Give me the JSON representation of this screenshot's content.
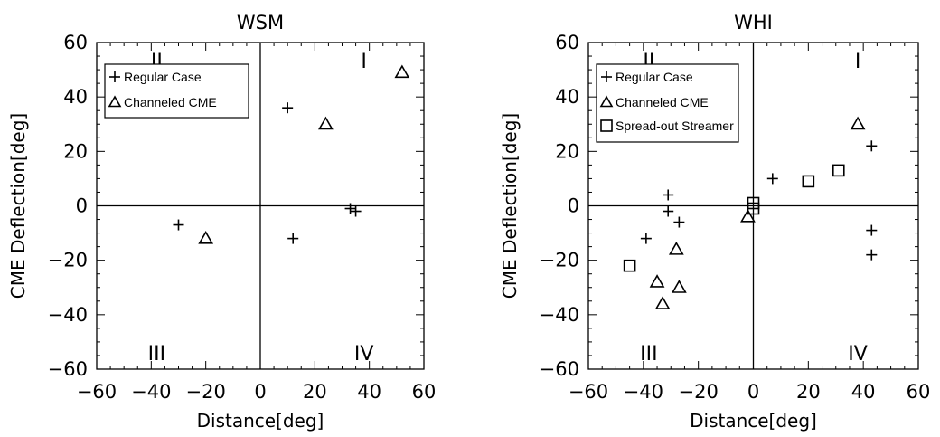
{
  "chart_data": [
    {
      "type": "scatter",
      "title": "WSM",
      "xlabel": "Distance[deg]",
      "ylabel": "CME Deflection[deg]",
      "xlim": [
        -60,
        60
      ],
      "ylim": [
        -60,
        60
      ],
      "xticks": [
        -60,
        -40,
        -20,
        0,
        20,
        40,
        60
      ],
      "yticks": [
        -60,
        -40,
        -20,
        0,
        20,
        40,
        60
      ],
      "xtick_labels": [
        "−60",
        "−40",
        "−20",
        "0",
        "20",
        "40",
        "60"
      ],
      "ytick_labels": [
        "−60",
        "−40",
        "−20",
        "0",
        "20",
        "40",
        "60"
      ],
      "quadrants": [
        "I",
        "II",
        "III",
        "IV"
      ],
      "legend_position": "upper-left",
      "series": [
        {
          "name": "Regular Case",
          "marker": "plus",
          "x": [
            10,
            12,
            -30,
            33,
            35
          ],
          "y": [
            36,
            -12,
            -7,
            -1,
            -2
          ]
        },
        {
          "name": "Channeled CME",
          "marker": "triangle",
          "x": [
            24,
            52,
            -20
          ],
          "y": [
            30,
            49,
            -12
          ]
        }
      ]
    },
    {
      "type": "scatter",
      "title": "WHI",
      "xlabel": "Distance[deg]",
      "ylabel": "CME Deflection[deg]",
      "xlim": [
        -60,
        60
      ],
      "ylim": [
        -60,
        60
      ],
      "xticks": [
        -60,
        -40,
        -20,
        0,
        20,
        40,
        60
      ],
      "yticks": [
        -60,
        -40,
        -20,
        0,
        20,
        40,
        60
      ],
      "xtick_labels": [
        "−60",
        "−40",
        "−20",
        "0",
        "20",
        "40",
        "60"
      ],
      "ytick_labels": [
        "−60",
        "−40",
        "−20",
        "0",
        "20",
        "40",
        "60"
      ],
      "quadrants": [
        "I",
        "II",
        "III",
        "IV"
      ],
      "legend_position": "upper-left",
      "series": [
        {
          "name": "Regular Case",
          "marker": "plus",
          "x": [
            -31,
            -31,
            -27,
            -39,
            7,
            43,
            43,
            43
          ],
          "y": [
            4,
            -2,
            -6,
            -12,
            10,
            22,
            -9,
            -18
          ]
        },
        {
          "name": "Channeled CME",
          "marker": "triangle",
          "x": [
            -28,
            -35,
            -27,
            -33,
            -2,
            38
          ],
          "y": [
            -16,
            -28,
            -30,
            -36,
            -4,
            30
          ]
        },
        {
          "name": "Spread-out Streamer",
          "marker": "square",
          "x": [
            -45,
            0,
            0,
            20,
            31
          ],
          "y": [
            -22,
            1,
            -1,
            9,
            13
          ]
        }
      ]
    }
  ]
}
